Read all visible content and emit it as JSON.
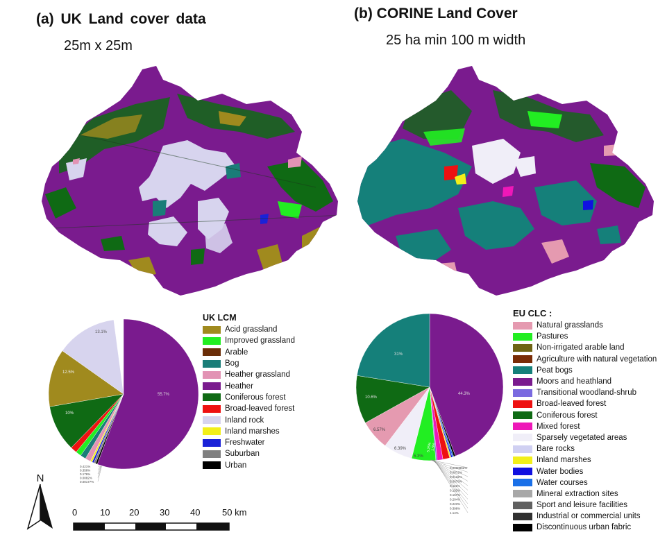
{
  "panel_a": {
    "title": "(a)  UK  Land  cover  data",
    "subtitle": "25m x 25m",
    "legend_title": "UK LCM",
    "classes": [
      {
        "label": "Acid grassland",
        "color": "#a08a1e"
      },
      {
        "label": "Improved grassland",
        "color": "#22ee22"
      },
      {
        "label": "Arable",
        "color": "#6b2e08"
      },
      {
        "label": "Bog",
        "color": "#1a7d78"
      },
      {
        "label": "Heather grassland",
        "color": "#e293b4"
      },
      {
        "label": "Heather",
        "color": "#7a1b8e"
      },
      {
        "label": "Coniferous forest",
        "color": "#0f6a14"
      },
      {
        "label": "Broad-leaved forest",
        "color": "#ee1111"
      },
      {
        "label": "Inland rock",
        "color": "#d7d4ee"
      },
      {
        "label": "Inland marshes",
        "color": "#f2ef1a"
      },
      {
        "label": "Freshwater",
        "color": "#1a22d8"
      },
      {
        "label": "Suburban",
        "color": "#808080"
      },
      {
        "label": "Urban",
        "color": "#000000"
      }
    ],
    "pie_labels": {
      "heather": "55.7%",
      "inland_rock": "13.1%",
      "acid_grassland": "12.5%",
      "coniferous": "10%",
      "small": [
        "0.421%",
        "0.358%",
        "0.176%",
        "0.0082%",
        "0.00177%"
      ]
    }
  },
  "panel_b": {
    "title": "(b) CORINE Land Cover",
    "subtitle": "25 ha min 100 m width",
    "legend_title": "EU CLC :",
    "classes": [
      {
        "label": "Natural grasslands",
        "color": "#e59ab0"
      },
      {
        "label": "Pastures",
        "color": "#22ee22"
      },
      {
        "label": "Non-irrigated arable land",
        "color": "#6f6414"
      },
      {
        "label": "Agriculture with natural vegetation",
        "color": "#7a2c06"
      },
      {
        "label": "Peat bogs",
        "color": "#15807a"
      },
      {
        "label": "Moors and heathland",
        "color": "#7a1b8e"
      },
      {
        "label": "Transitional woodland-shrub",
        "color": "#7a6ae0"
      },
      {
        "label": "Broad-leaved forest",
        "color": "#ee1111"
      },
      {
        "label": "Coniferous forest",
        "color": "#0f6a14"
      },
      {
        "label": "Mixed forest",
        "color": "#ee18b8"
      },
      {
        "label": "Sparsely vegetated areas",
        "color": "#f0eef8"
      },
      {
        "label": "Bare rocks",
        "color": "#d0d0f2"
      },
      {
        "label": "Inland marshes",
        "color": "#f2ef1a"
      },
      {
        "label": "Water bodies",
        "color": "#1010e0"
      },
      {
        "label": "Water courses",
        "color": "#1a70e8"
      },
      {
        "label": "Mineral extraction sites",
        "color": "#a8a8a8"
      },
      {
        "label": "Sport and leisure facilities",
        "color": "#606060"
      },
      {
        "label": "Industrial or commercial units",
        "color": "#303030"
      },
      {
        "label": "Discontinuous urban fabric",
        "color": "#000000"
      }
    ],
    "pie_labels": {
      "moors": "44.3%",
      "peat": "31%",
      "coniferous": "10.6%",
      "natural_grass": "6.57%",
      "sparse": "6.39%",
      "pastures": "5.3%",
      "mixed": "5.25%",
      "broadleaf": "1.5%",
      "small": [
        "0.0000862%",
        "0.0072%",
        "0.0132%",
        "0.0678%",
        "0.111%",
        "0.133%",
        "0.157%",
        "0.204%",
        "0.223%",
        "0.398%",
        "1.14%"
      ]
    }
  },
  "north_label": "N",
  "scale": {
    "ticks": [
      "0",
      "10",
      "20",
      "30",
      "40"
    ],
    "last": "50 km"
  }
}
